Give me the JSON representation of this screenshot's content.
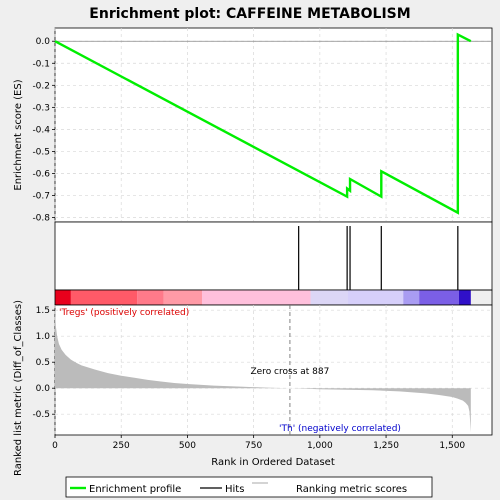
{
  "chart_data": {
    "type": "line",
    "title": "Enrichment plot: CAFFEINE METABOLISM",
    "xlabel": "Rank in Ordered Dataset",
    "xlim": [
      0,
      1650
    ],
    "x_ticks": [
      0,
      250,
      500,
      750,
      1000,
      1250,
      1500
    ],
    "x_tick_labels": [
      "0",
      "250",
      "500",
      "750",
      "1,000",
      "1,250",
      "1,500"
    ],
    "es_panel": {
      "ylabel": "Enrichment score (ES)",
      "ylim": [
        -0.82,
        0.06
      ],
      "y_ticks": [
        0.0,
        -0.1,
        -0.2,
        -0.3,
        -0.4,
        -0.5,
        -0.6,
        -0.7,
        -0.8
      ],
      "y_tick_labels": [
        "0.0",
        "-0.1",
        "-0.2",
        "-0.3",
        "-0.4",
        "-0.5",
        "-0.6",
        "-0.7",
        "-0.8"
      ],
      "grid": true,
      "series": [
        {
          "name": "Enrichment profile",
          "color": "#00ee00",
          "x": [
            0,
            1103,
            1103,
            1114,
            1114,
            1232,
            1232,
            1521,
            1521,
            1570
          ],
          "y": [
            0.0,
            -0.705,
            -0.668,
            -0.678,
            -0.625,
            -0.705,
            -0.59,
            -0.778,
            0.03,
            0.0
          ]
        }
      ]
    },
    "hits": {
      "name": "Hits",
      "color": "#000000",
      "x": [
        920,
        1103,
        1114,
        1232,
        1521
      ]
    },
    "rank_colorbar": {
      "segments": [
        {
          "from": 0,
          "to": 60,
          "color": "#e8001c"
        },
        {
          "from": 60,
          "to": 310,
          "color": "#ff5a68"
        },
        {
          "from": 310,
          "to": 410,
          "color": "#ff7a8a"
        },
        {
          "from": 410,
          "to": 555,
          "color": "#ff9aa6"
        },
        {
          "from": 555,
          "to": 965,
          "color": "#ffc0dc"
        },
        {
          "from": 965,
          "to": 1105,
          "color": "#dcd6f6"
        },
        {
          "from": 1105,
          "to": 1315,
          "color": "#d6cffa"
        },
        {
          "from": 1315,
          "to": 1375,
          "color": "#a99cf2"
        },
        {
          "from": 1375,
          "to": 1525,
          "color": "#7b5fe6"
        },
        {
          "from": 1525,
          "to": 1570,
          "color": "#3010c8"
        }
      ]
    },
    "metric_panel": {
      "ylabel": "Ranked list metric (Diff_of_Classes)",
      "ylim": [
        -0.9,
        1.6
      ],
      "y_ticks": [
        1.5,
        1.0,
        0.5,
        0.0,
        -0.5
      ],
      "y_tick_labels": [
        "1.5",
        "1.0",
        "0.5",
        "0.0",
        "-0.5"
      ],
      "grid": true,
      "series": [
        {
          "name": "Ranking metric scores",
          "color": "#bbbbbb",
          "x": [
            0,
            3,
            8,
            15,
            25,
            40,
            60,
            80,
            100,
            150,
            200,
            250,
            300,
            350,
            400,
            450,
            500,
            600,
            700,
            800,
            887,
            950,
            1000,
            1100,
            1200,
            1300,
            1350,
            1400,
            1450,
            1500,
            1520,
            1540,
            1550,
            1560,
            1565,
            1570
          ],
          "y": [
            1.55,
            1.2,
            1.0,
            0.85,
            0.74,
            0.64,
            0.55,
            0.49,
            0.44,
            0.36,
            0.29,
            0.24,
            0.2,
            0.16,
            0.13,
            0.1,
            0.08,
            0.05,
            0.03,
            0.01,
            0.0,
            -0.01,
            -0.02,
            -0.03,
            -0.04,
            -0.06,
            -0.08,
            -0.1,
            -0.13,
            -0.17,
            -0.2,
            -0.24,
            -0.28,
            -0.34,
            -0.45,
            -0.85
          ]
        }
      ],
      "zero_cross": 887,
      "zero_cross_label": "Zero cross at 887",
      "pos_label": "'Tregs' (positively correlated)",
      "neg_label": "'Th' (negatively correlated)"
    },
    "legend": {
      "placement": "bottom",
      "entries": [
        "Enrichment profile",
        "Hits",
        "Ranking metric scores"
      ]
    }
  }
}
